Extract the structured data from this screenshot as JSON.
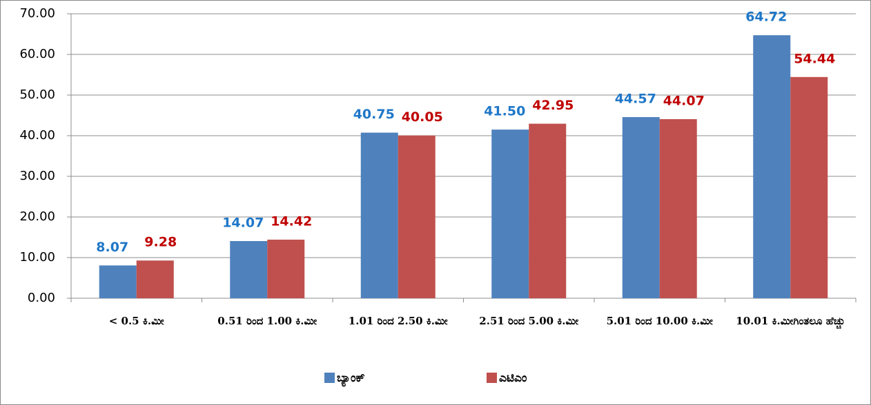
{
  "chart_data": {
    "type": "bar",
    "categories": [
      "< 0.5 ಕಿ.ಮೀ",
      "0.51 ರಿಂದ 1.00 ಕಿ.ಮೀ",
      "1.01 ರಿಂದ 2.50 ಕಿ.ಮೀ",
      "2.51 ರಿಂದ 5.00 ಕಿ.ಮೀ",
      "5.01 ರಿಂದ 10.00 ಕಿ.ಮೀ",
      "10.01 ಕಿ.ಮೀಗಿಂತಲೂ ಹೆಚ್ಚು"
    ],
    "series": [
      {
        "name": "ಬ್ಯಾಂಕ್",
        "color": "#4f81bd",
        "label_color": "#1f77c8",
        "values": [
          8.07,
          14.07,
          40.75,
          41.5,
          44.57,
          64.72
        ],
        "value_labels": [
          "8.07",
          "14.07",
          "40.75",
          "41.50",
          "44.57",
          "64.72"
        ]
      },
      {
        "name": "ಎಟಿಎಂ",
        "color": "#c0504d",
        "label_color": "#c00000",
        "values": [
          9.28,
          14.42,
          40.05,
          42.95,
          44.07,
          54.44
        ],
        "value_labels": [
          "9.28",
          "14.42",
          "40.05",
          "42.95",
          "44.07",
          "54.44"
        ]
      }
    ],
    "ylim": [
      0,
      70
    ],
    "yticks": [
      {
        "value": 0,
        "label": "0.00"
      },
      {
        "value": 10,
        "label": "10.00"
      },
      {
        "value": 20,
        "label": "20.00"
      },
      {
        "value": 30,
        "label": "30.00"
      },
      {
        "value": 40,
        "label": "40.00"
      },
      {
        "value": 50,
        "label": "50.00"
      },
      {
        "value": 60,
        "label": "60.00"
      },
      {
        "value": 70,
        "label": "70.00"
      }
    ],
    "grid": true,
    "legend": "bottom"
  }
}
